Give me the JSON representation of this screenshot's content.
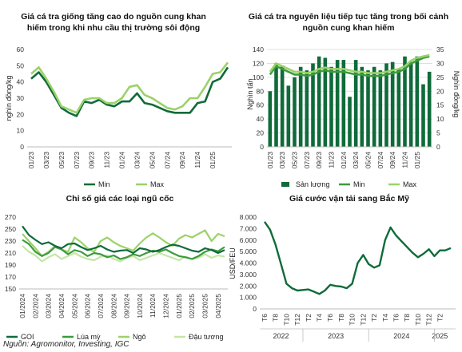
{
  "source": "Nguồn: Agromonitor, Investing, IGC",
  "colors": {
    "dark": "#0f6b3a",
    "mid": "#3c9b3c",
    "light": "#9bd26a",
    "lightest": "#c5e6a6"
  },
  "chart_data": [
    {
      "type": "line",
      "title": "Giá cá tra giống tăng cao do nguồn cung khan hiếm trong khi nhu cầu thị trường sôi động",
      "ylabel": "nghìn đồng/kg",
      "ylim": [
        0,
        60
      ],
      "yticks": [
        0,
        10,
        20,
        30,
        40,
        50,
        60
      ],
      "xticks": [
        "01/23",
        "03/23",
        "05/23",
        "07/23",
        "09/23",
        "11/23",
        "01/24",
        "03/24",
        "05/24",
        "07/24",
        "09/24",
        "11/24",
        "01/25"
      ],
      "x": [
        0,
        1,
        2,
        3,
        4,
        5,
        6,
        7,
        8,
        9,
        10,
        11,
        12,
        13,
        14,
        15,
        16,
        17,
        18,
        19,
        20,
        21,
        22,
        23,
        24,
        25,
        26
      ],
      "series": [
        {
          "name": "Min",
          "color": "#0f6b3a",
          "values": [
            42,
            46,
            40,
            32,
            24,
            21,
            19,
            28,
            27,
            29,
            26,
            25,
            28,
            28,
            33,
            27,
            26,
            24,
            22,
            21,
            21,
            21,
            27,
            28,
            40,
            42,
            49
          ]
        },
        {
          "name": "Max",
          "color": "#9bd26a",
          "values": [
            45,
            49,
            42,
            34,
            25,
            23,
            21,
            29,
            30,
            30,
            27,
            27,
            30,
            37,
            38,
            32,
            30,
            27,
            24,
            23,
            25,
            30,
            30,
            37,
            45,
            46,
            52
          ]
        }
      ],
      "legend": "bottom"
    },
    {
      "type": "bar+line",
      "title": "Giá cá tra nguyên liệu tiếp tục tăng trong bối cảnh nguồn cung khan hiếm",
      "ylabel_left": "Nghìn tấn",
      "ylabel_right": "Nghìn đồng/kg",
      "ylim_left": [
        0,
        140
      ],
      "yticks_left": [
        0,
        20,
        40,
        60,
        80,
        100,
        120,
        140
      ],
      "ylim_right": [
        0,
        35
      ],
      "yticks_right": [
        0,
        5,
        10,
        15,
        20,
        25,
        30,
        35
      ],
      "xticks": [
        "01/23",
        "03/23",
        "05/23",
        "07/23",
        "09/23",
        "11/23",
        "01/24",
        "03/24",
        "05/24",
        "07/24",
        "09/24",
        "11/24",
        "01/25"
      ],
      "bars": {
        "name": "Sản lượng",
        "color": "#0f6b3a",
        "values": [
          80,
          120,
          117,
          88,
          100,
          115,
          110,
          120,
          130,
          128,
          115,
          125,
          125,
          72,
          125,
          115,
          110,
          115,
          110,
          120,
          122,
          113,
          130,
          122,
          130,
          90,
          108
        ]
      },
      "series": [
        {
          "name": "Min",
          "color": "#3c9b3c",
          "values": [
            26,
            29,
            28,
            27,
            26,
            26,
            25.5,
            26,
            27,
            27.5,
            27,
            27,
            27,
            26.5,
            26,
            26,
            25.5,
            25.5,
            25.5,
            26,
            26.5,
            27,
            28,
            30,
            31,
            32,
            32.5
          ]
        },
        {
          "name": "Max",
          "color": "#9bd26a",
          "values": [
            27,
            30,
            29,
            28,
            27,
            27,
            26.5,
            27,
            28,
            28.5,
            28,
            28,
            28,
            27.5,
            27,
            27,
            26.5,
            26.5,
            26.5,
            27,
            27.5,
            28,
            29,
            31,
            32,
            32.5,
            33
          ]
        }
      ],
      "legend": "bottom"
    },
    {
      "type": "line",
      "title": "Chỉ số giá các loại ngũ cốc",
      "ylim": [
        150,
        270
      ],
      "yticks": [
        150,
        170,
        190,
        210,
        230,
        250,
        270
      ],
      "xticks": [
        "01/2024",
        "02/2024",
        "03/2024",
        "04/2024",
        "05/2024",
        "06/2024",
        "07/2024",
        "08/2024",
        "09/2024",
        "10/2024",
        "11/2024",
        "12/2024",
        "01/2025",
        "02/2025",
        "03/2025",
        "04/2025"
      ],
      "x": [
        0,
        0.5,
        1,
        1.5,
        2,
        2.5,
        3,
        3.5,
        4,
        4.5,
        5,
        5.5,
        6,
        6.5,
        7,
        7.5,
        8,
        8.5,
        9,
        9.5,
        10,
        10.5,
        11,
        11.5,
        12,
        12.5,
        13,
        13.5,
        14,
        14.5,
        15,
        15.5
      ],
      "series": [
        {
          "name": "GOI",
          "color": "#0f6b3a",
          "values": [
            255,
            240,
            232,
            225,
            228,
            222,
            218,
            225,
            226,
            220,
            215,
            218,
            222,
            216,
            212,
            214,
            215,
            210,
            218,
            216,
            212,
            215,
            220,
            224,
            222,
            218,
            214,
            212,
            218,
            215,
            210,
            215
          ]
        },
        {
          "name": "Lúa mỳ",
          "color": "#3c9b3c",
          "values": [
            232,
            225,
            212,
            205,
            210,
            220,
            216,
            208,
            215,
            212,
            205,
            210,
            208,
            203,
            206,
            200,
            203,
            208,
            205,
            210,
            214,
            212,
            216,
            210,
            205,
            203,
            200,
            205,
            212,
            216,
            213,
            220
          ]
        },
        {
          "name": "Ngô",
          "color": "#9bd26a",
          "values": [
            242,
            230,
            218,
            205,
            212,
            222,
            216,
            212,
            236,
            228,
            218,
            212,
            230,
            236,
            228,
            222,
            218,
            214,
            226,
            236,
            243,
            236,
            228,
            222,
            234,
            240,
            236,
            242,
            248,
            230,
            242,
            238
          ]
        },
        {
          "name": "Đậu tương",
          "color": "#c5e6a6",
          "values": [
            222,
            212,
            206,
            196,
            203,
            208,
            200,
            205,
            210,
            204,
            200,
            198,
            204,
            206,
            200,
            196,
            202,
            205,
            198,
            202,
            206,
            210,
            206,
            202,
            198,
            204,
            200,
            202,
            208,
            202,
            206,
            204
          ]
        }
      ],
      "legend": "bottom"
    },
    {
      "type": "line",
      "title": "Giá cước vận tải sang Bắc Mỹ",
      "ylabel": "USD/FEU",
      "ylim": [
        0,
        8000
      ],
      "yticks": [
        0,
        1000,
        2000,
        3000,
        4000,
        5000,
        6000,
        7000,
        8000
      ],
      "ytick_labels": [
        "0",
        "1.000",
        "2.000",
        "3.000",
        "4.000",
        "5.000",
        "6.000",
        "7.000",
        "8.000"
      ],
      "xticks": [
        "T6",
        "T8",
        "T10",
        "T12",
        "T2",
        "T4",
        "T6",
        "T8",
        "T10",
        "T12",
        "T2",
        "T4",
        "T6",
        "T8",
        "T10",
        "T12",
        "T2"
      ],
      "year_labels": [
        {
          "label": "2022",
          "span": [
            0,
            3
          ]
        },
        {
          "label": "2023",
          "span": [
            4,
            9
          ]
        },
        {
          "label": "2024",
          "span": [
            10,
            15
          ]
        },
        {
          "label": "2025",
          "span": [
            16,
            16
          ]
        }
      ],
      "x": [
        0,
        0.5,
        1,
        1.5,
        2,
        2.5,
        3,
        3.5,
        4,
        4.5,
        5,
        5.5,
        6,
        6.5,
        7,
        7.5,
        8,
        8.5,
        9,
        9.5,
        10,
        10.5,
        11,
        11.5,
        12,
        12.5,
        13,
        13.5,
        14,
        14.5,
        15,
        15.5,
        16,
        16.5,
        17
      ],
      "series": [
        {
          "name": "",
          "color": "#0f6b3a",
          "values": [
            7600,
            6900,
            5600,
            3900,
            2200,
            1800,
            1600,
            1650,
            1700,
            1500,
            1300,
            1600,
            2100,
            2000,
            1950,
            1800,
            2200,
            4000,
            4700,
            3900,
            3600,
            3800,
            6000,
            7100,
            6400,
            5900,
            5400,
            4900,
            4500,
            4800,
            5200,
            4600,
            5100,
            5100,
            5300
          ]
        }
      ]
    }
  ]
}
